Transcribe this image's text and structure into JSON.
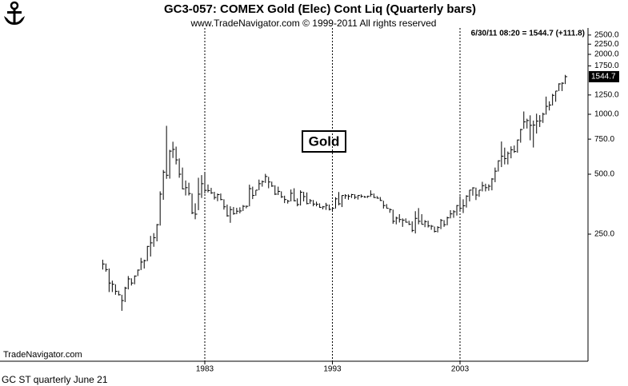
{
  "chart_data": {
    "type": "hlc",
    "title": "GC3-057:  COMEX Gold (Elec) Cont Liq  (Quarterly bars)",
    "subtitle": "www.TradeNavigator.com © 1999-2011 All rights reserved",
    "quote": "6/30/11 08:20 = 1544.7 (+111.8)",
    "annotation": "Gold",
    "watermark": "TradeNavigator.com",
    "footer": "GC ST quarterly June 21",
    "log_scale": true,
    "grid": true,
    "color": "#000000",
    "xlim": [
      1966.95,
      2013.03
    ],
    "xticks": [
      1983,
      1993,
      2003
    ],
    "ylim": [
      57.5,
      2713
    ],
    "yticks": [
      {
        "value": 2500,
        "label": "2500.0"
      },
      {
        "value": 2250,
        "label": "2250.0"
      },
      {
        "value": 2000,
        "label": "2000.0"
      },
      {
        "value": 1750,
        "label": "1750.0"
      },
      {
        "value": 1250,
        "label": "1250.0"
      },
      {
        "value": 1000,
        "label": "1000.0"
      },
      {
        "value": 750,
        "label": "750.0"
      },
      {
        "value": 500,
        "label": "500.0"
      },
      {
        "value": 250,
        "label": "250.0"
      }
    ],
    "x": [
      1975,
      1975.25,
      1975.5,
      1975.75,
      1976,
      1976.25,
      1976.5,
      1976.75,
      1977,
      1977.25,
      1977.5,
      1977.75,
      1978,
      1978.25,
      1978.5,
      1978.75,
      1979,
      1979.25,
      1979.5,
      1979.75,
      1980,
      1980.25,
      1980.5,
      1980.75,
      1981,
      1981.25,
      1981.5,
      1981.75,
      1982,
      1982.25,
      1982.5,
      1982.75,
      1983,
      1983.25,
      1983.5,
      1983.75,
      1984,
      1984.25,
      1984.5,
      1984.75,
      1985,
      1985.25,
      1985.5,
      1985.75,
      1986,
      1986.25,
      1986.5,
      1986.75,
      1987,
      1987.25,
      1987.5,
      1987.75,
      1988,
      1988.25,
      1988.5,
      1988.75,
      1989,
      1989.25,
      1989.5,
      1989.75,
      1990,
      1990.25,
      1990.5,
      1990.75,
      1991,
      1991.25,
      1991.5,
      1991.75,
      1992,
      1992.25,
      1992.5,
      1992.75,
      1993,
      1993.25,
      1993.5,
      1993.75,
      1994,
      1994.25,
      1994.5,
      1994.75,
      1995,
      1995.25,
      1995.5,
      1995.75,
      1996,
      1996.25,
      1996.5,
      1996.75,
      1997,
      1997.25,
      1997.5,
      1997.75,
      1998,
      1998.25,
      1998.5,
      1998.75,
      1999,
      1999.25,
      1999.5,
      1999.75,
      2000,
      2000.25,
      2000.5,
      2000.75,
      2001,
      2001.25,
      2001.5,
      2001.75,
      2002,
      2002.25,
      2002.5,
      2002.75,
      2003,
      2003.25,
      2003.5,
      2003.75,
      2004,
      2004.25,
      2004.5,
      2004.75,
      2005,
      2005.25,
      2005.5,
      2005.75,
      2006,
      2006.25,
      2006.5,
      2006.75,
      2007,
      2007.25,
      2007.5,
      2007.75,
      2008,
      2008.25,
      2008.5,
      2008.75,
      2009,
      2009.25,
      2009.5,
      2009.75,
      2010,
      2010.25,
      2010.5,
      2010.75,
      2011,
      2011.25
    ],
    "high": [
      186,
      178,
      168,
      146,
      140,
      130,
      124,
      136,
      154,
      150,
      155,
      166,
      190,
      186,
      218,
      245,
      253,
      281,
      410,
      525,
      875,
      663,
      728,
      688,
      600,
      540,
      465,
      453,
      400,
      357,
      480,
      495,
      514,
      444,
      427,
      408,
      400,
      400,
      374,
      352,
      345,
      342,
      339,
      341,
      350,
      348,
      443,
      433,
      416,
      470,
      465,
      502,
      485,
      459,
      440,
      433,
      410,
      390,
      372,
      419,
      425,
      378,
      415,
      408,
      405,
      375,
      371,
      364,
      357,
      346,
      359,
      352,
      340,
      383,
      407,
      392,
      397,
      396,
      398,
      397,
      392,
      396,
      389,
      390,
      415,
      400,
      388,
      384,
      368,
      354,
      337,
      332,
      306,
      315,
      300,
      300,
      292,
      290,
      326,
      338,
      315,
      294,
      292,
      278,
      273,
      274,
      298,
      294,
      306,
      330,
      330,
      350,
      388,
      374,
      392,
      417,
      430,
      428,
      416,
      458,
      448,
      445,
      478,
      540,
      587,
      730,
      680,
      650,
      690,
      697,
      746,
      845,
      1033,
      950,
      988,
      930,
      1007,
      990,
      1018,
      1227,
      1162,
      1266,
      1310,
      1431,
      1448,
      1577
    ],
    "low": [
      166,
      162,
      128,
      128,
      124,
      123,
      103,
      114,
      132,
      138,
      140,
      154,
      165,
      168,
      183,
      193,
      216,
      230,
      276,
      372,
      474,
      475,
      603,
      560,
      480,
      420,
      391,
      391,
      315,
      297,
      330,
      380,
      400,
      405,
      398,
      373,
      366,
      370,
      332,
      306,
      285,
      313,
      315,
      318,
      327,
      337,
      345,
      375,
      390,
      416,
      433,
      452,
      425,
      432,
      393,
      393,
      380,
      358,
      356,
      365,
      365,
      345,
      348,
      365,
      353,
      355,
      345,
      345,
      339,
      333,
      331,
      329,
      326,
      336,
      349,
      342,
      376,
      372,
      380,
      375,
      373,
      381,
      381,
      380,
      385,
      380,
      377,
      367,
      336,
      337,
      320,
      282,
      280,
      286,
      272,
      286,
      278,
      256,
      252,
      280,
      280,
      271,
      270,
      263,
      255,
      255,
      265,
      272,
      277,
      300,
      302,
      310,
      328,
      319,
      340,
      365,
      390,
      371,
      385,
      410,
      410,
      413,
      415,
      456,
      516,
      543,
      560,
      560,
      601,
      640,
      641,
      720,
      845,
      848,
      740,
      681,
      800,
      863,
      905,
      996,
      1045,
      1107,
      1156,
      1308,
      1308,
      1418
    ],
    "close": [
      177,
      166,
      142,
      140,
      129,
      124,
      116,
      134,
      149,
      142,
      154,
      165,
      181,
      184,
      217,
      226,
      240,
      279,
      397,
      512,
      494,
      653,
      666,
      590,
      500,
      422,
      428,
      400,
      320,
      315,
      397,
      448,
      415,
      414,
      403,
      382,
      395,
      373,
      343,
      309,
      332,
      317,
      326,
      327,
      345,
      345,
      423,
      391,
      416,
      448,
      459,
      487,
      457,
      436,
      397,
      410,
      385,
      373,
      366,
      401,
      368,
      352,
      406,
      386,
      356,
      368,
      354,
      353,
      341,
      343,
      349,
      333,
      337,
      376,
      355,
      391,
      390,
      387,
      395,
      383,
      391,
      387,
      384,
      387,
      396,
      382,
      379,
      369,
      348,
      337,
      332,
      290,
      301,
      296,
      294,
      287,
      280,
      261,
      300,
      290,
      280,
      289,
      275,
      274,
      258,
      270,
      293,
      279,
      302,
      316,
      324,
      348,
      337,
      347,
      388,
      416,
      427,
      393,
      416,
      438,
      428,
      435,
      473,
      518,
      584,
      616,
      599,
      636,
      663,
      650,
      743,
      838,
      916,
      930,
      880,
      883,
      924,
      927,
      1001,
      1096,
      1113,
      1245,
      1308,
      1421,
      1432,
      1544.7
    ]
  }
}
